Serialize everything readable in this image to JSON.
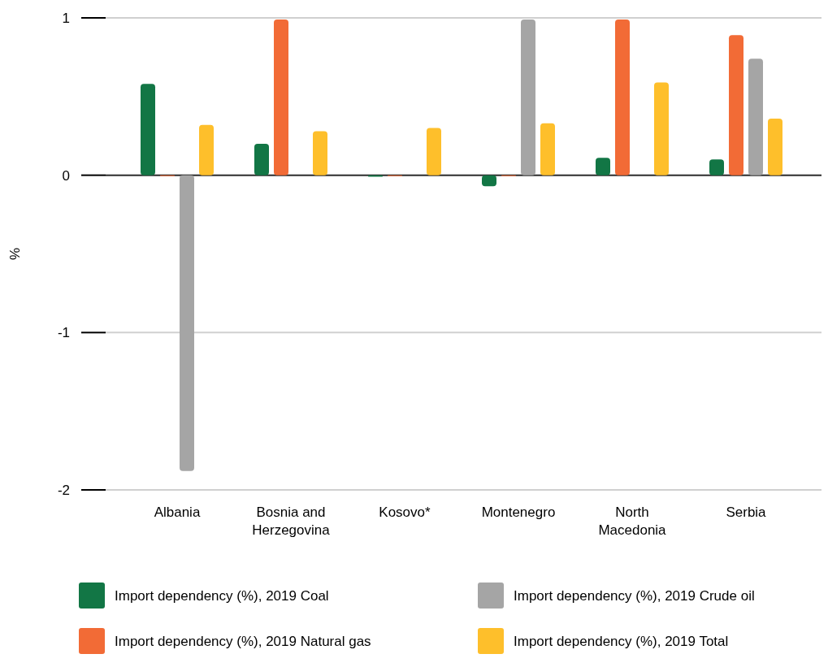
{
  "chart_data": {
    "type": "bar",
    "ylabel": "%",
    "categories": [
      "Albania",
      "Bosnia and Herzegovina",
      "Kosovo*",
      "Montenegro",
      "North Macedonia",
      "Serbia"
    ],
    "series": [
      {
        "name": "Import dependency (%), 2019 Coal",
        "color": "#127645",
        "values": [
          0.58,
          0.2,
          -0.01,
          -0.07,
          0.11,
          0.1
        ]
      },
      {
        "name": "Import dependency (%), 2019 Natural gas",
        "color": "#f26b36",
        "values": [
          0,
          0.99,
          0,
          0,
          0.99,
          0.89
        ]
      },
      {
        "name": "Import dependency (%), 2019 Crude oil",
        "color": "#a5a5a5",
        "values": [
          -1.88,
          null,
          null,
          0.99,
          null,
          0.74
        ]
      },
      {
        "name": "Import dependency (%), 2019 Total",
        "color": "#febf2b",
        "values": [
          0.32,
          0.28,
          0.3,
          0.33,
          0.59,
          0.36
        ]
      }
    ],
    "ylim": [
      -2,
      1
    ],
    "yticks": [
      -2,
      -1,
      0,
      1
    ],
    "grid": "y",
    "legend": "bottom"
  }
}
